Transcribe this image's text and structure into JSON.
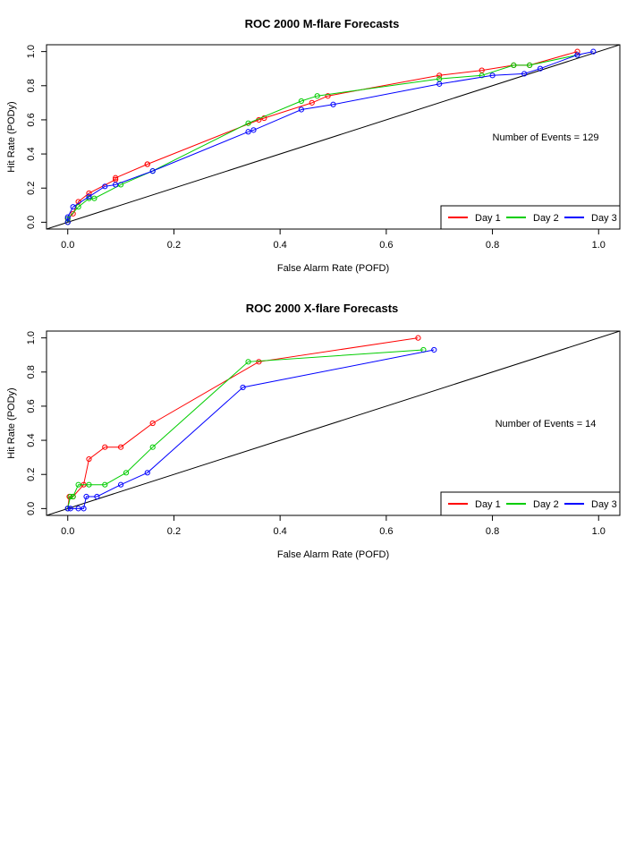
{
  "chart_data": [
    {
      "type": "line",
      "title": "ROC  2000 M-flare Forecasts",
      "xlabel": "False Alarm Rate (POFD)",
      "ylabel": "Hit Rate (PODy)",
      "xlim": [
        -0.04,
        1.04
      ],
      "ylim": [
        -0.04,
        1.04
      ],
      "x_ticks": [
        "0.0",
        "0.2",
        "0.4",
        "0.6",
        "0.8",
        "1.0"
      ],
      "y_ticks": [
        "0.0",
        "0.2",
        "0.4",
        "0.6",
        "0.8",
        "1.0"
      ],
      "diagonal_reference": true,
      "annotation": "Number of Events =  129",
      "legend_position": "bottom-right",
      "series": [
        {
          "name": "Day 1",
          "color": "#ff0000",
          "x": [
            0.0,
            0.0,
            0.01,
            0.02,
            0.04,
            0.09,
            0.09,
            0.15,
            0.15,
            0.36,
            0.37,
            0.46,
            0.49,
            0.7,
            0.78,
            0.84,
            0.87,
            0.96
          ],
          "y": [
            0.0,
            0.02,
            0.05,
            0.12,
            0.17,
            0.25,
            0.26,
            0.34,
            0.34,
            0.6,
            0.61,
            0.7,
            0.74,
            0.86,
            0.89,
            0.92,
            0.92,
            1.0
          ]
        },
        {
          "name": "Day 2",
          "color": "#00cd00",
          "x": [
            0.0,
            0.0,
            0.02,
            0.04,
            0.05,
            0.1,
            0.16,
            0.34,
            0.44,
            0.47,
            0.7,
            0.78,
            0.84,
            0.87,
            0.96
          ],
          "y": [
            0.0,
            0.02,
            0.09,
            0.14,
            0.14,
            0.22,
            0.3,
            0.58,
            0.71,
            0.74,
            0.84,
            0.86,
            0.92,
            0.92,
            0.98
          ]
        },
        {
          "name": "Day 3",
          "color": "#0000ff",
          "x": [
            0.0,
            0.0,
            0.01,
            0.04,
            0.07,
            0.09,
            0.16,
            0.34,
            0.35,
            0.44,
            0.5,
            0.7,
            0.8,
            0.86,
            0.89,
            0.96,
            0.99
          ],
          "y": [
            0.0,
            0.03,
            0.09,
            0.15,
            0.21,
            0.22,
            0.3,
            0.53,
            0.54,
            0.66,
            0.69,
            0.81,
            0.86,
            0.87,
            0.9,
            0.98,
            1.0
          ]
        }
      ]
    },
    {
      "type": "line",
      "title": "ROC  2000 X-flare Forecasts",
      "xlabel": "False Alarm Rate (POFD)",
      "ylabel": "Hit Rate (PODy)",
      "xlim": [
        -0.04,
        1.04
      ],
      "ylim": [
        -0.04,
        1.04
      ],
      "x_ticks": [
        "0.0",
        "0.2",
        "0.4",
        "0.6",
        "0.8",
        "1.0"
      ],
      "y_ticks": [
        "0.0",
        "0.2",
        "0.4",
        "0.6",
        "0.8",
        "1.0"
      ],
      "diagonal_reference": true,
      "annotation": "Number of Events =  14",
      "legend_position": "bottom-right",
      "series": [
        {
          "name": "Day 1",
          "color": "#ff0000",
          "x": [
            0.0,
            0.003,
            0.01,
            0.03,
            0.04,
            0.07,
            0.1,
            0.16,
            0.36,
            0.66
          ],
          "y": [
            0.0,
            0.07,
            0.07,
            0.14,
            0.29,
            0.36,
            0.36,
            0.5,
            0.86,
            1.0
          ]
        },
        {
          "name": "Day 2",
          "color": "#00cd00",
          "x": [
            0.0,
            0.005,
            0.01,
            0.02,
            0.04,
            0.07,
            0.11,
            0.16,
            0.34,
            0.67
          ],
          "y": [
            0.0,
            0.07,
            0.07,
            0.14,
            0.14,
            0.14,
            0.21,
            0.36,
            0.86,
            0.93
          ]
        },
        {
          "name": "Day 3",
          "color": "#0000ff",
          "x": [
            0.0,
            0.005,
            0.02,
            0.03,
            0.035,
            0.055,
            0.1,
            0.15,
            0.33,
            0.69
          ],
          "y": [
            0.0,
            0.0,
            0.0,
            0.0,
            0.07,
            0.07,
            0.14,
            0.21,
            0.71,
            0.93
          ]
        }
      ]
    }
  ]
}
